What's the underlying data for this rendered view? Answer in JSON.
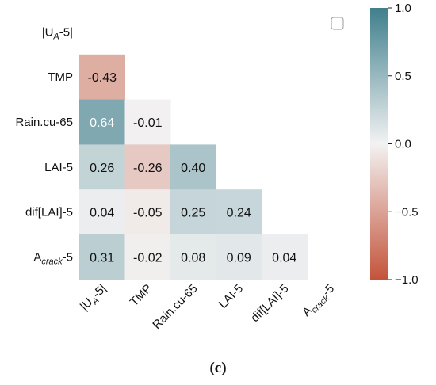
{
  "chart_data": {
    "type": "heatmap",
    "layout": "lower-triangle",
    "row_labels": [
      {
        "main": "|U",
        "sub": "A",
        "tail": "-5|"
      },
      {
        "main": "TMP",
        "sub": "",
        "tail": ""
      },
      {
        "main": "Rain.cu-65",
        "sub": "",
        "tail": ""
      },
      {
        "main": "LAI-5",
        "sub": "",
        "tail": ""
      },
      {
        "main": "dif[LAI]-5",
        "sub": "",
        "tail": ""
      },
      {
        "main": "A",
        "sub": "crack",
        "tail": "-5"
      }
    ],
    "col_labels": [
      {
        "main": "|U",
        "sub": "A",
        "tail": "-5|"
      },
      {
        "main": "TMP",
        "sub": "",
        "tail": ""
      },
      {
        "main": "Rain.cu-65",
        "sub": "",
        "tail": ""
      },
      {
        "main": "LAI-5",
        "sub": "",
        "tail": ""
      },
      {
        "main": "dif[LAI]-5",
        "sub": "",
        "tail": ""
      },
      {
        "main": "A",
        "sub": "crack",
        "tail": "-5"
      }
    ],
    "cells": [
      {
        "row": 1,
        "col": 0,
        "value": -0.43,
        "label": "-0.43"
      },
      {
        "row": 2,
        "col": 0,
        "value": 0.64,
        "label": "0.64"
      },
      {
        "row": 2,
        "col": 1,
        "value": -0.01,
        "label": "-0.01"
      },
      {
        "row": 3,
        "col": 0,
        "value": 0.26,
        "label": "0.26"
      },
      {
        "row": 3,
        "col": 1,
        "value": -0.26,
        "label": "-0.26"
      },
      {
        "row": 3,
        "col": 2,
        "value": 0.4,
        "label": "0.40"
      },
      {
        "row": 4,
        "col": 0,
        "value": 0.04,
        "label": "0.04"
      },
      {
        "row": 4,
        "col": 1,
        "value": -0.05,
        "label": "-0.05"
      },
      {
        "row": 4,
        "col": 2,
        "value": 0.25,
        "label": "0.25"
      },
      {
        "row": 4,
        "col": 3,
        "value": 0.24,
        "label": "0.24"
      },
      {
        "row": 5,
        "col": 0,
        "value": 0.31,
        "label": "0.31"
      },
      {
        "row": 5,
        "col": 1,
        "value": -0.02,
        "label": "-0.02"
      },
      {
        "row": 5,
        "col": 2,
        "value": 0.08,
        "label": "0.08"
      },
      {
        "row": 5,
        "col": 3,
        "value": 0.09,
        "label": "0.09"
      },
      {
        "row": 5,
        "col": 4,
        "value": 0.04,
        "label": "0.04"
      }
    ],
    "colorbar": {
      "range": [
        -1.0,
        1.0
      ],
      "ticks": [
        1.0,
        0.5,
        0.0,
        -0.5,
        -1.0
      ],
      "tick_labels": [
        "1.0",
        "0.5",
        "0.0",
        "−0.5",
        "−1.0"
      ],
      "colors": {
        "negative": "#c4533a",
        "neutral": "#f2f2f2",
        "positive": "#3f7f8c"
      }
    },
    "legend": {
      "placement": "top-right",
      "entries": []
    },
    "grid": false
  },
  "caption": "(c)"
}
